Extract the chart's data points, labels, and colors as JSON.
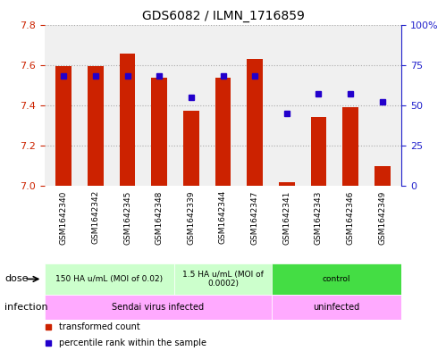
{
  "title": "GDS6082 / ILMN_1716859",
  "samples": [
    "GSM1642340",
    "GSM1642342",
    "GSM1642345",
    "GSM1642348",
    "GSM1642339",
    "GSM1642344",
    "GSM1642347",
    "GSM1642341",
    "GSM1642343",
    "GSM1642346",
    "GSM1642349"
  ],
  "bar_values": [
    7.595,
    7.595,
    7.655,
    7.535,
    7.375,
    7.535,
    7.63,
    7.02,
    7.34,
    7.39,
    7.1
  ],
  "percentile_values": [
    68,
    68,
    68,
    68,
    55,
    68,
    68,
    45,
    57,
    57,
    52
  ],
  "ylim_left": [
    7.0,
    7.8
  ],
  "ylim_right": [
    0,
    100
  ],
  "yticks_left": [
    7.0,
    7.2,
    7.4,
    7.6,
    7.8
  ],
  "yticks_right": [
    0,
    25,
    50,
    75,
    100
  ],
  "ytick_labels_right": [
    "0",
    "25",
    "50",
    "75",
    "100%"
  ],
  "bar_color": "#cc2200",
  "dot_color": "#2200cc",
  "dose_groups": [
    {
      "label": "150 HA u/mL (MOI of 0.02)",
      "start": 0,
      "end": 4,
      "color": "#ccffcc"
    },
    {
      "label": "1.5 HA u/mL (MOI of\n0.0002)",
      "start": 4,
      "end": 7,
      "color": "#ccffcc"
    },
    {
      "label": "control",
      "start": 7,
      "end": 11,
      "color": "#44dd44"
    }
  ],
  "infection_groups": [
    {
      "label": "Sendai virus infected",
      "start": 0,
      "end": 7,
      "color": "#ffaaff"
    },
    {
      "label": "uninfected",
      "start": 7,
      "end": 11,
      "color": "#ffaaff"
    }
  ],
  "legend_items": [
    {
      "label": "transformed count",
      "color": "#cc2200"
    },
    {
      "label": "percentile rank within the sample",
      "color": "#2200cc"
    }
  ],
  "grid_color": "#aaaaaa",
  "bg_color": "#ffffff",
  "tick_label_color_left": "#cc2200",
  "tick_label_color_right": "#2222cc"
}
